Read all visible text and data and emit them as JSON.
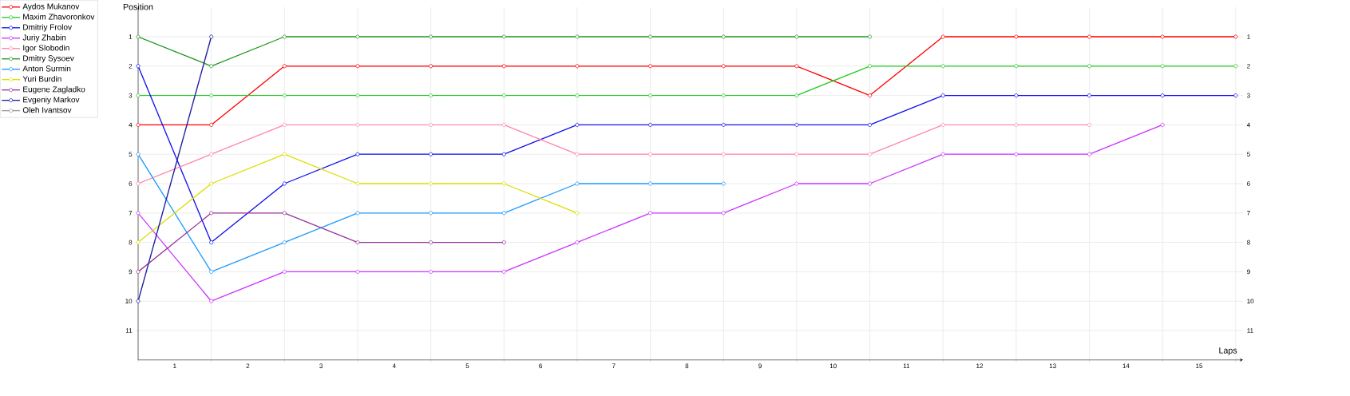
{
  "chart_data": {
    "type": "line",
    "xlabel": "Laps",
    "ylabel": "Position",
    "x": [
      0,
      1,
      2,
      3,
      4,
      5,
      6,
      7,
      8,
      9,
      10,
      11,
      12,
      13,
      14,
      15
    ],
    "series": [
      {
        "name": "Aydos Mukanov",
        "color": "#ff0000",
        "values": [
          4,
          4,
          2,
          2,
          2,
          2,
          2,
          2,
          2,
          2,
          3,
          1,
          1,
          1,
          1,
          1
        ]
      },
      {
        "name": "Maxim Zhavoronkov",
        "color": "#22cc22",
        "values": [
          3,
          3,
          3,
          3,
          3,
          3,
          3,
          3,
          3,
          3,
          2,
          2,
          2,
          2,
          2,
          2
        ]
      },
      {
        "name": "Dmitriy Frolov",
        "color": "#1111ee",
        "values": [
          2,
          8,
          6,
          5,
          5,
          5,
          4,
          4,
          4,
          4,
          4,
          3,
          3,
          3,
          3,
          3
        ]
      },
      {
        "name": "Juriy Zhabin",
        "color": "#cc33ff",
        "values": [
          7,
          10,
          9,
          9,
          9,
          9,
          8,
          7,
          7,
          6,
          6,
          5,
          5,
          5,
          4,
          null
        ]
      },
      {
        "name": "Igor Slobodin",
        "color": "#ff88aa",
        "values": [
          6,
          5,
          4,
          4,
          4,
          4,
          5,
          5,
          5,
          5,
          5,
          4,
          4,
          4,
          null,
          null
        ]
      },
      {
        "name": "Dmitry Sysoev",
        "color": "#229922",
        "values": [
          1,
          2,
          1,
          1,
          1,
          1,
          1,
          1,
          1,
          1,
          1,
          null,
          null,
          null,
          null,
          null
        ]
      },
      {
        "name": "Anton Surmin",
        "color": "#1e9bff",
        "values": [
          5,
          9,
          8,
          7,
          7,
          7,
          6,
          6,
          6,
          null,
          null,
          null,
          null,
          null,
          null,
          null
        ]
      },
      {
        "name": "Yuri Burdin",
        "color": "#dddd00",
        "values": [
          8,
          6,
          5,
          6,
          6,
          6,
          7,
          null,
          null,
          null,
          null,
          null,
          null,
          null,
          null,
          null
        ]
      },
      {
        "name": "Eugene Zagladko",
        "color": "#993399",
        "values": [
          9,
          7,
          7,
          8,
          8,
          8,
          null,
          null,
          null,
          null,
          null,
          null,
          null,
          null,
          null,
          null
        ]
      },
      {
        "name": "Evgeniy Markov",
        "color": "#1a1aa0",
        "values": [
          10,
          1,
          null,
          null,
          null,
          null,
          null,
          null,
          null,
          null,
          null,
          null,
          null,
          null,
          null,
          null
        ]
      },
      {
        "name": "Oleh Ivantsov",
        "color": "#999999",
        "values": [
          null,
          null,
          null,
          null,
          null,
          null,
          null,
          null,
          null,
          null,
          null,
          null,
          null,
          null,
          null,
          null
        ]
      }
    ],
    "xlim": [
      0,
      15.1
    ],
    "xticks": [
      {
        "value": 0,
        "label": null
      },
      {
        "value": 1,
        "label": null
      },
      {
        "value": 2,
        "label": null
      },
      {
        "value": 3,
        "label": null
      },
      {
        "value": 4,
        "label": null
      },
      {
        "value": 5,
        "label": null
      },
      {
        "value": 6,
        "label": null
      },
      {
        "value": 7,
        "label": null
      },
      {
        "value": 8,
        "label": null
      },
      {
        "value": 9,
        "label": null
      },
      {
        "value": 10,
        "label": null
      },
      {
        "value": 11,
        "label": null
      },
      {
        "value": 12,
        "label": null
      },
      {
        "value": 13,
        "label": null
      },
      {
        "value": 14,
        "label": null
      },
      {
        "value": 15,
        "label": null
      },
      {
        "value": 0.5,
        "label": "1"
      },
      {
        "value": 1.5,
        "label": "2"
      },
      {
        "value": 2.5,
        "label": "3"
      },
      {
        "value": 3.5,
        "label": "4"
      },
      {
        "value": 4.5,
        "label": "5"
      },
      {
        "value": 5.5,
        "label": "6"
      },
      {
        "value": 6.5,
        "label": "7"
      },
      {
        "value": 7.5,
        "label": "8"
      },
      {
        "value": 8.5,
        "label": "9"
      },
      {
        "value": 9.5,
        "label": "10"
      },
      {
        "value": 10.5,
        "label": "11"
      },
      {
        "value": 11.5,
        "label": "12"
      },
      {
        "value": 12.5,
        "label": "13"
      },
      {
        "value": 13.5,
        "label": "14"
      },
      {
        "value": 14.5,
        "label": "15"
      }
    ],
    "ylim": [
      12,
      0
    ],
    "yticks": [
      1,
      2,
      3,
      4,
      5,
      6,
      7,
      8,
      9,
      10,
      11
    ],
    "y2lim": [
      12,
      0
    ],
    "y2ticks": [
      1,
      2,
      3,
      4,
      5,
      6,
      7,
      8,
      9,
      10,
      11
    ],
    "grid": true,
    "legend": "left",
    "marker": "circle",
    "line_style": "solid"
  }
}
